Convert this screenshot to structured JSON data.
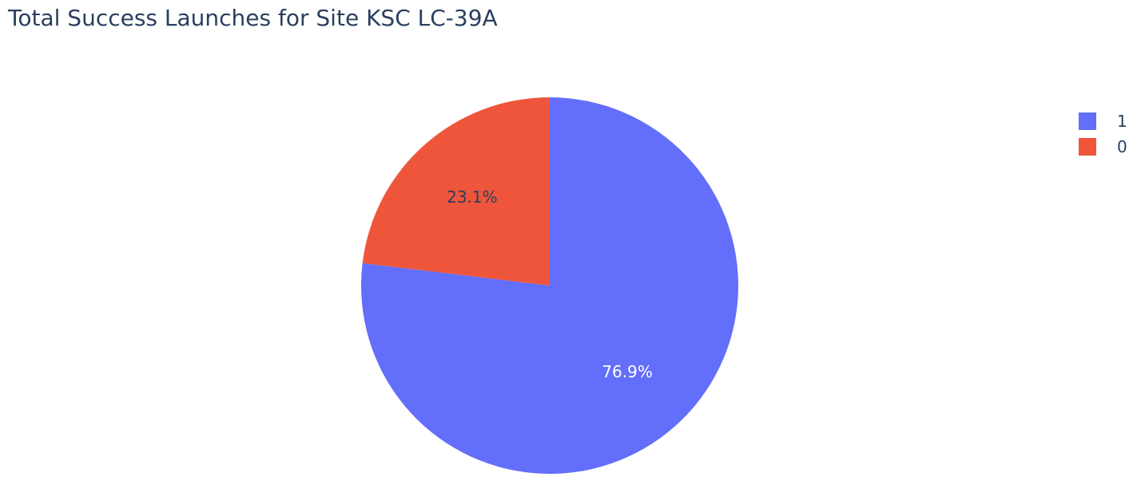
{
  "chart_data": {
    "type": "pie",
    "title": "Total Success Launches for Site KSC LC-39A",
    "slices": [
      {
        "label": "1",
        "percent": 76.9,
        "percent_label": "76.9%",
        "color": "#636efa",
        "text_color": "#ffffff"
      },
      {
        "label": "0",
        "percent": 23.1,
        "percent_label": "23.1%",
        "color": "#ef553b",
        "text_color": "#2a3f5f"
      }
    ],
    "legend": {
      "placement": "top-right",
      "entries": [
        "1",
        "0"
      ]
    }
  }
}
